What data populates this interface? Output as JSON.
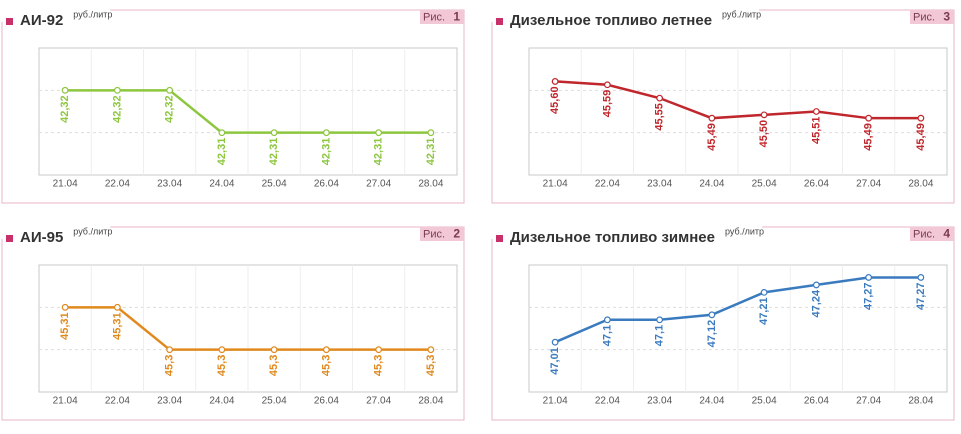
{
  "chart_data": [
    {
      "type": "line",
      "title": "АИ-92",
      "unit": "руб./литр",
      "figure_label": "Рис.",
      "figure_number": "1",
      "categories": [
        "21.04",
        "22.04",
        "23.04",
        "24.04",
        "25.04",
        "26.04",
        "27.04",
        "28.04"
      ],
      "series": [
        {
          "color": "#8dc63f",
          "values": [
            42.32,
            42.32,
            42.32,
            42.31,
            42.31,
            42.31,
            42.31,
            42.31
          ],
          "value_labels": [
            "42,32",
            "42,32",
            "42,32",
            "42,31",
            "42,31",
            "42,31",
            "42,31",
            "42,31"
          ]
        }
      ],
      "ylim": [
        42.3,
        42.33
      ]
    },
    {
      "type": "line",
      "title": "АИ-95",
      "unit": "руб./литр",
      "figure_label": "Рис.",
      "figure_number": "2",
      "categories": [
        "21.04",
        "22.04",
        "23.04",
        "24.04",
        "25.04",
        "26.04",
        "27.04",
        "28.04"
      ],
      "series": [
        {
          "color": "#e08a1e",
          "values": [
            45.31,
            45.31,
            45.3,
            45.3,
            45.3,
            45.3,
            45.3,
            45.3
          ],
          "value_labels": [
            "45,31",
            "45,31",
            "45,3",
            "45,3",
            "45,3",
            "45,3",
            "45,3",
            "45,3"
          ]
        }
      ],
      "ylim": [
        45.29,
        45.32
      ]
    },
    {
      "type": "line",
      "title": "Дизельное топливо летнее",
      "unit": "руб./литр",
      "figure_label": "Рис.",
      "figure_number": "3",
      "categories": [
        "21.04",
        "22.04",
        "23.04",
        "24.04",
        "25.04",
        "26.04",
        "27.04",
        "28.04"
      ],
      "series": [
        {
          "color": "#c0272d",
          "values": [
            45.6,
            45.59,
            45.55,
            45.49,
            45.5,
            45.51,
            45.49,
            45.49
          ],
          "value_labels": [
            "45,60",
            "45,59",
            "45,55",
            "45,49",
            "45,50",
            "45,51",
            "45,49",
            "45,49"
          ]
        }
      ],
      "ylim": [
        45.32,
        45.7
      ]
    },
    {
      "type": "line",
      "title": "Дизельное топливо зимнее",
      "unit": "руб./литр",
      "figure_label": "Рис.",
      "figure_number": "4",
      "categories": [
        "21.04",
        "22.04",
        "23.04",
        "24.04",
        "25.04",
        "26.04",
        "27.04",
        "28.04"
      ],
      "series": [
        {
          "color": "#3a7bbf",
          "values": [
            47.01,
            47.1,
            47.1,
            47.12,
            47.21,
            47.24,
            47.27,
            47.27
          ],
          "value_labels": [
            "47,01",
            "47,1",
            "47,1",
            "47,12",
            "47,21",
            "47,24",
            "47,27",
            "47,27"
          ]
        }
      ],
      "ylim": [
        46.81,
        47.32
      ]
    }
  ]
}
